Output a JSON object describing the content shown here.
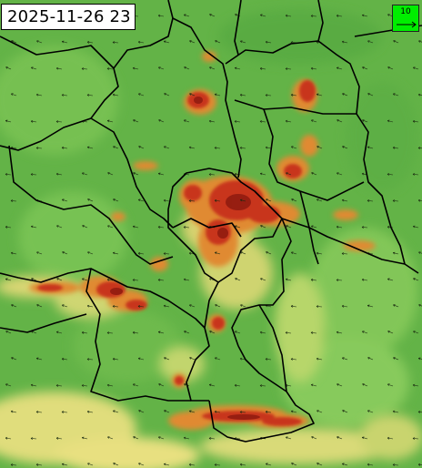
{
  "timestamp": "2025-11-26 23",
  "legend": {
    "value": "10",
    "color": "#00ee00"
  },
  "colors": {
    "base_green": "#63b347",
    "light_green": "#86c95a",
    "yellow_green": "#b7d66a",
    "yellow": "#e8e080",
    "orange": "#e08a30",
    "red": "#c8341c",
    "dark_red": "#8e1a0f",
    "border": "#000000",
    "arrow": "#1a2a10"
  }
}
